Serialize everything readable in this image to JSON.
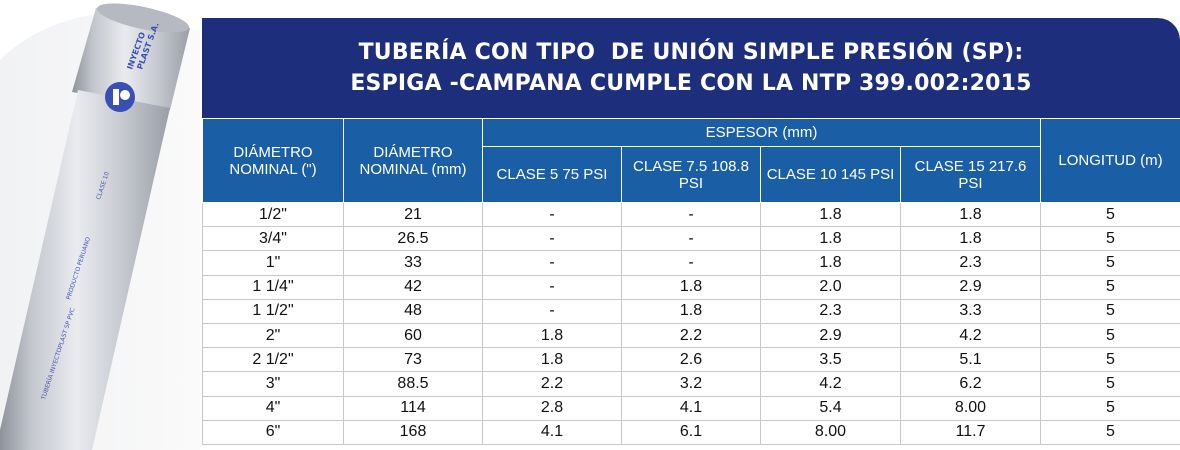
{
  "brand": {
    "logo_text_line1": "INYECTO",
    "logo_text_line2": "PLAST S.A.",
    "pipe_print_1": "CLASE 10",
    "pipe_print_2": "PRODUCTO PERUANO",
    "pipe_print_3": "TUBERÍA INYECTOPLAST SP PVC"
  },
  "title": {
    "line1": "TUBERÍA CON TIPO  DE UNIÓN SIMPLE PRESIÓN (SP):",
    "line2": "ESPIGA -CAMPANA CUMPLE CON LA NTP 399.002:2015"
  },
  "headers": {
    "diametro_pulg": "DIÁMETRO NOMINAL (\")",
    "diametro_mm": "DIÁMETRO NOMINAL (mm)",
    "espesor": "ESPESOR (mm)",
    "clase5": "CLASE 5 75 PSI",
    "clase75": "CLASE 7.5 108.8 PSI",
    "clase10": "CLASE 10 145 PSI",
    "clase15": "CLASE 15 217.6 PSI",
    "longitud": "LONGITUD (m)"
  },
  "rows": [
    [
      "1/2\"",
      "21",
      "-",
      "-",
      "1.8",
      "1.8",
      "5"
    ],
    [
      "3/4\"",
      "26.5",
      "-",
      "-",
      "1.8",
      "1.8",
      "5"
    ],
    [
      "1\"",
      "33",
      "-",
      "-",
      "1.8",
      "2.3",
      "5"
    ],
    [
      "1 1/4\"",
      "42",
      "-",
      "1.8",
      "2.0",
      "2.9",
      "5"
    ],
    [
      "1 1/2\"",
      "48",
      "-",
      "1.8",
      "2.3",
      "3.3",
      "5"
    ],
    [
      "2\"",
      "60",
      "1.8",
      "2.2",
      "2.9",
      "4.2",
      "5"
    ],
    [
      "2 1/2\"",
      "73",
      "1.8",
      "2.6",
      "3.5",
      "5.1",
      "5"
    ],
    [
      "3\"",
      "88.5",
      "2.2",
      "3.2",
      "4.2",
      "6.2",
      "5"
    ],
    [
      "4\"",
      "114",
      "2.8",
      "4.1",
      "5.4",
      "8.00",
      "5"
    ],
    [
      "6\"",
      "168",
      "4.1",
      "6.1",
      "8.00",
      "11.7",
      "5"
    ]
  ],
  "colors": {
    "title_bg": "#1d2f7c",
    "header_bg": "#1a5fa6",
    "pipe_gray": "#c9ccd3"
  }
}
